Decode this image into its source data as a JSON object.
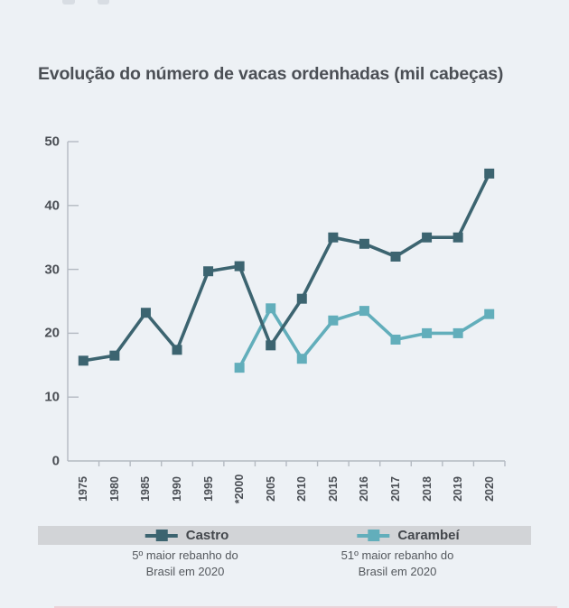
{
  "title": "Evolução do número de vacas ordenhadas (mil cabeças)",
  "chart_data": {
    "type": "line",
    "title": "Evolução do número de vacas ordenhadas (mil cabeças)",
    "categories": [
      "1975",
      "1980",
      "1985",
      "1990",
      "1995",
      "*2000",
      "2005",
      "2010",
      "2015",
      "2016",
      "2017",
      "2018",
      "2019",
      "2020"
    ],
    "series": [
      {
        "name": "Castro",
        "color": "#3c6470",
        "values": [
          15.7,
          16.5,
          23.2,
          17.4,
          29.7,
          30.5,
          18.1,
          25.4,
          35,
          34,
          32,
          35,
          35,
          45
        ]
      },
      {
        "name": "Carambeí",
        "color": "#62aebb",
        "values": [
          null,
          null,
          null,
          null,
          null,
          14.6,
          23.9,
          16,
          22,
          23.5,
          19,
          20,
          20,
          23
        ]
      }
    ],
    "xlabel": "",
    "ylabel": "",
    "ylim": [
      0,
      50
    ],
    "yticks": [
      0,
      10,
      20,
      30,
      40,
      50
    ],
    "grid": false,
    "legend_position": "bottom",
    "marker": "square",
    "axis_color": "#b4bac2"
  },
  "legend": {
    "entries": [
      {
        "label": "Castro",
        "caption_line1": "5º maior rebanho do",
        "caption_line2": "Brasil em 2020"
      },
      {
        "label": "Carambeí",
        "caption_line1": "51º maior rebanho do",
        "caption_line2": "Brasil em 2020"
      }
    ]
  }
}
